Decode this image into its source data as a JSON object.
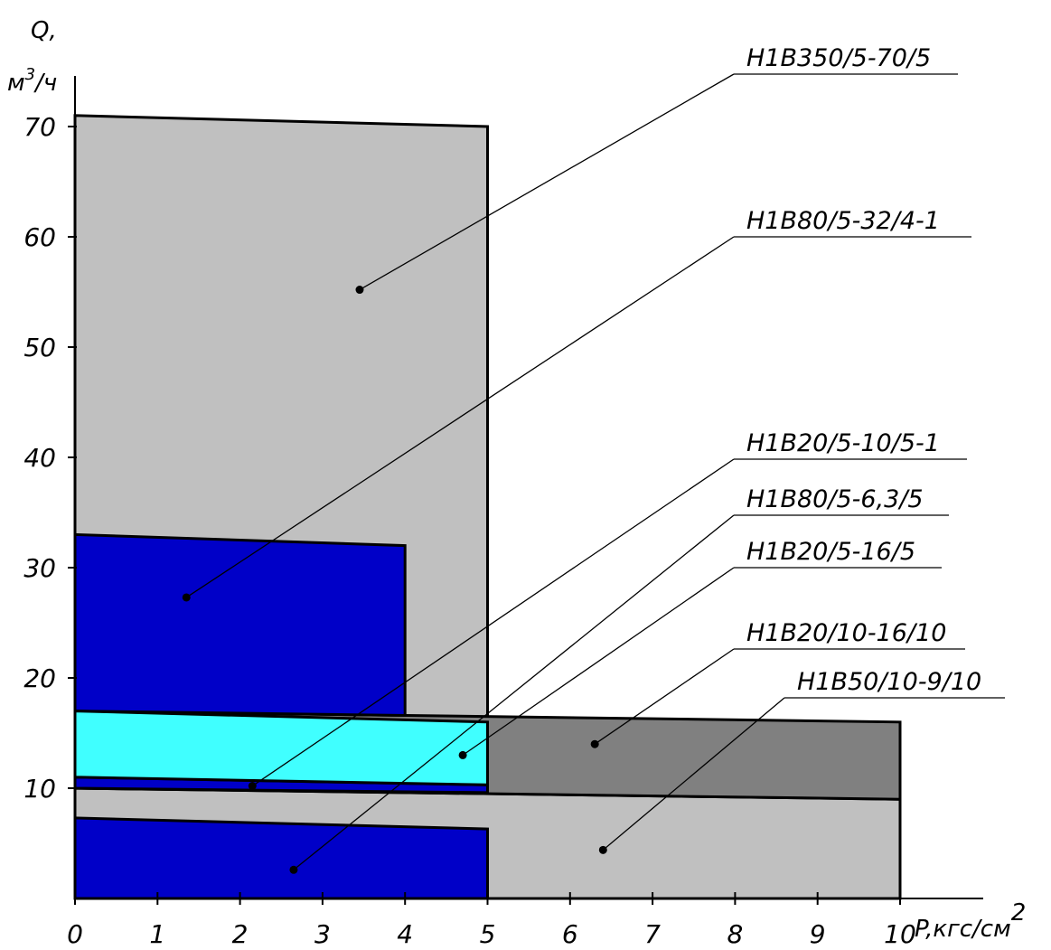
{
  "chart_data": {
    "type": "area",
    "title": "",
    "xlabel": "P,кгс/см",
    "xlabel_sup": "2",
    "ylabel_line1": "Q,",
    "ylabel_line2": "м",
    "ylabel_sup": "3",
    "ylabel_line3": "/ч",
    "xlim": [
      0,
      10
    ],
    "ylim": [
      0,
      70
    ],
    "x_ticks": [
      "0",
      "1",
      "2",
      "3",
      "4",
      "5",
      "6",
      "7",
      "8",
      "9",
      "10"
    ],
    "y_ticks": [
      "10",
      "20",
      "30",
      "40",
      "50",
      "60",
      "70"
    ],
    "grid": false,
    "regions": [
      {
        "name": "Н1В350/5-70/5",
        "color": "#c0c0c0",
        "polygon": [
          [
            0,
            0
          ],
          [
            0,
            71
          ],
          [
            5,
            70
          ],
          [
            5,
            0
          ]
        ],
        "marker": [
          3.45,
          55.2
        ]
      },
      {
        "name": "Н1В50/10-9/10",
        "color": "#c0c0c0",
        "polygon": [
          [
            0,
            0
          ],
          [
            0,
            10
          ],
          [
            10,
            9
          ],
          [
            10,
            0
          ]
        ],
        "marker": [
          6.4,
          4.4
        ]
      },
      {
        "name": "Н1В20/10-16/10",
        "color": "#808080",
        "polygon": [
          [
            0,
            10
          ],
          [
            0,
            17
          ],
          [
            10,
            16
          ],
          [
            10,
            9
          ]
        ],
        "marker": [
          6.3,
          14.0
        ]
      },
      {
        "name": "Н1В80/5-32/4-1",
        "color": "#0000c8",
        "polygon": [
          [
            0,
            17
          ],
          [
            0,
            33
          ],
          [
            4,
            32
          ],
          [
            4,
            16.6
          ]
        ],
        "marker": [
          1.35,
          27.3
        ]
      },
      {
        "name": "Н1В20/5-10/5-1",
        "color": "#0000c8",
        "polygon": [
          [
            0,
            10
          ],
          [
            0,
            11
          ],
          [
            5,
            10.3
          ],
          [
            5,
            9.6
          ]
        ],
        "marker": [
          2.15,
          10.2
        ]
      },
      {
        "name": "Н1В20/5-16/5",
        "color": "#40ffff",
        "polygon": [
          [
            0,
            11
          ],
          [
            0,
            17
          ],
          [
            5,
            16
          ],
          [
            5,
            10.3
          ]
        ],
        "marker": [
          4.7,
          13.0
        ]
      },
      {
        "name": "Н1В80/5-6,3/5",
        "color": "#0000c8",
        "polygon": [
          [
            0,
            0
          ],
          [
            0,
            7.3
          ],
          [
            5,
            6.3
          ],
          [
            5,
            0
          ]
        ],
        "marker": [
          2.65,
          2.6
        ]
      }
    ],
    "legend": [
      {
        "label": "Н1В350/5-70/5",
        "target": 0
      },
      {
        "label": "Н1В80/5-32/4-1",
        "target": 3
      },
      {
        "label": "Н1В20/5-10/5-1",
        "target": 4
      },
      {
        "label": "Н1В80/5-6,3/5",
        "target": 6
      },
      {
        "label": "Н1В20/5-16/5",
        "target": 5
      },
      {
        "label": "Н1В20/10-16/10",
        "target": 2
      },
      {
        "label": "Н1В50/10-9/10",
        "target": 1
      }
    ]
  }
}
